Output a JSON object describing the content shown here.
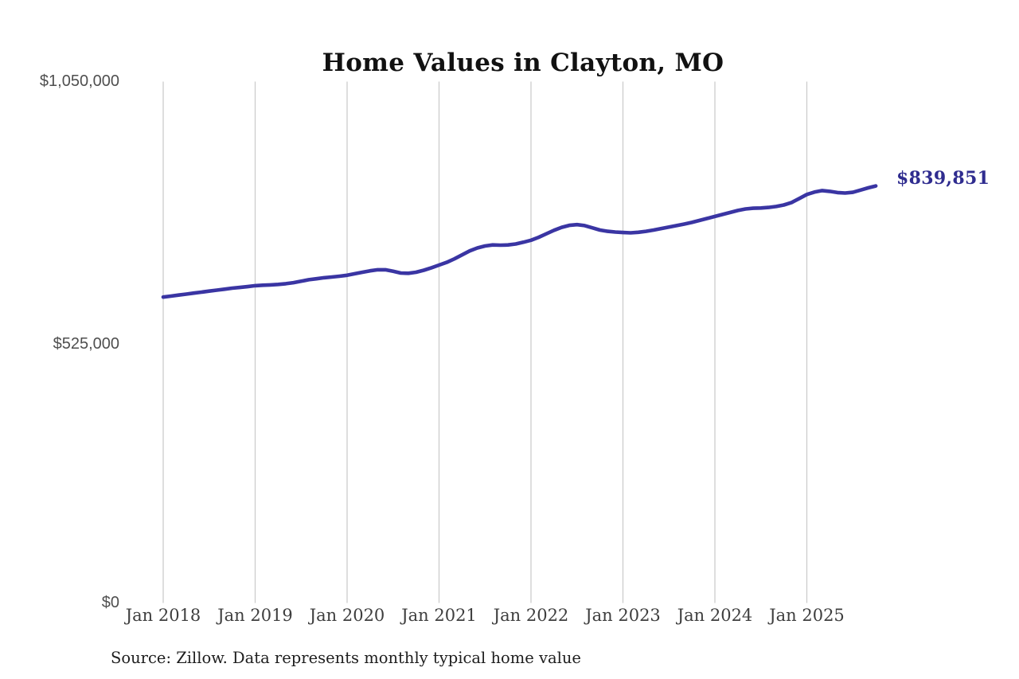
{
  "title": "Home Values in Clayton, MO",
  "annotation": {
    "label": "$839,851",
    "color": "#2f2c8f"
  },
  "source_note": "Source: Zillow. Data represents monthly typical home value",
  "colors": {
    "line": "#3a35a3",
    "gridline": "#c9c9c9",
    "y_label": "#4f4f4f",
    "x_label": "#3e3e3e",
    "title": "#111111",
    "background": "#ffffff"
  },
  "chart_data": {
    "type": "line",
    "title": "Home Values in Clayton, MO",
    "xlabel": "",
    "ylabel": "",
    "x_ticks": [
      "Jan 2018",
      "Jan 2019",
      "Jan 2020",
      "Jan 2021",
      "Jan 2022",
      "Jan 2023",
      "Jan 2024",
      "Jan 2025"
    ],
    "y_ticks": [
      {
        "value": 0,
        "label": "$0"
      },
      {
        "value": 525000,
        "label": "$525,000"
      },
      {
        "value": 1050000,
        "label": "$1,050,000"
      }
    ],
    "ylim": [
      0,
      1050000
    ],
    "grid": "vertical-only",
    "legend": "none",
    "x_start": "Jan 2018",
    "x_interval": "1 month",
    "x_end": "Oct 2025",
    "final_value": 839851,
    "series": [
      {
        "name": "Monthly typical home value",
        "color": "#3a35a3",
        "values": [
          616000,
          618000,
          620000,
          622000,
          624000,
          626000,
          628000,
          630000,
          632000,
          634000,
          635500,
          637000,
          639000,
          640000,
          640500,
          641500,
          643000,
          645000,
          648000,
          651000,
          653000,
          655000,
          656500,
          658000,
          660000,
          663000,
          666000,
          669000,
          671000,
          671000,
          668000,
          664500,
          664000,
          666000,
          670000,
          675000,
          680500,
          686000,
          693000,
          701000,
          709000,
          715000,
          719000,
          721000,
          720500,
          721000,
          723000,
          726500,
          730500,
          736500,
          743500,
          750500,
          756500,
          760500,
          762000,
          760000,
          755500,
          751000,
          748500,
          747000,
          746000,
          745500,
          746500,
          748500,
          751000,
          754000,
          757000,
          760000,
          763000,
          766500,
          770500,
          774500,
          778500,
          782500,
          786500,
          790500,
          793500,
          795000,
          795500,
          796500,
          798500,
          801500,
          806500,
          814500,
          822700,
          827500,
          830500,
          829000,
          826500,
          825500,
          827000,
          831500,
          836000,
          839851
        ]
      }
    ]
  }
}
